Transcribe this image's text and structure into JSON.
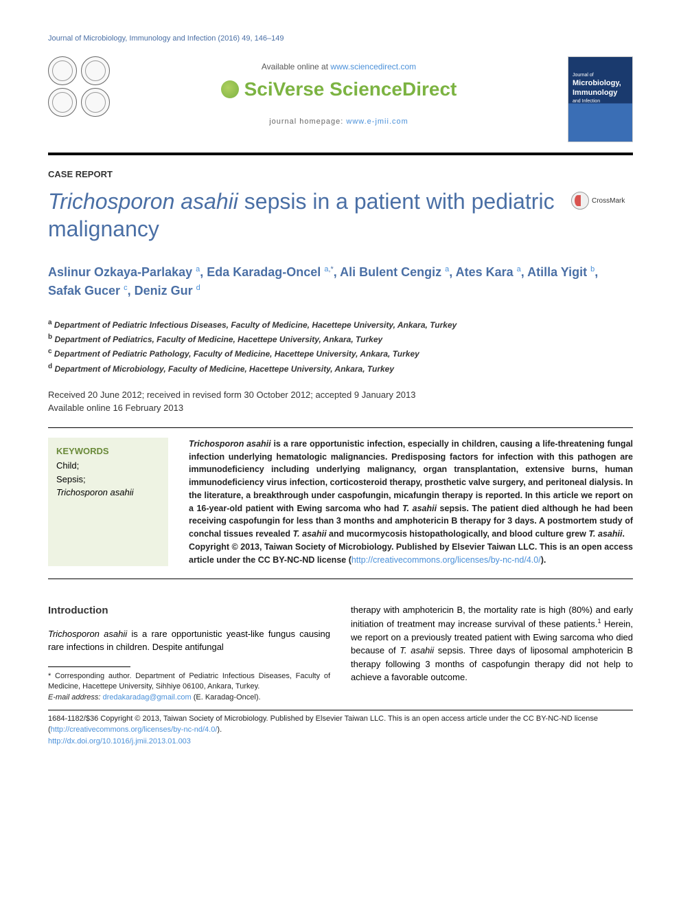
{
  "running_head": "Journal of Microbiology, Immunology and Infection (2016) 49, 146–149",
  "header": {
    "available_prefix": "Available online at ",
    "available_url": "www.sciencedirect.com",
    "brand": "SciVerse ScienceDirect",
    "homepage_prefix": "journal homepage: ",
    "homepage_url": "www.e-jmii.com",
    "cover_journal_line1": "Journal of",
    "cover_journal_line2": "Microbiology,",
    "cover_journal_line3": "Immunology",
    "cover_journal_line4": "and Infection"
  },
  "article_type": "CASE REPORT",
  "title_html": "<em>Trichosporon asahii</em> sepsis in a patient with pediatric malignancy",
  "crossmark_label": "CrossMark",
  "authors_html": "Aslinur Ozkaya-Parlakay <sup><a>a</a></sup>, Eda Karadag-Oncel <sup><a>a</a>,*</sup>, Ali Bulent Cengiz <sup><a>a</a></sup>, Ates Kara <sup><a>a</a></sup>, Atilla Yigit <sup><a>b</a></sup>, Safak Gucer <sup><a>c</a></sup>, Deniz Gur <sup><a>d</a></sup>",
  "affiliations": [
    "a Department of Pediatric Infectious Diseases, Faculty of Medicine, Hacettepe University, Ankara, Turkey",
    "b Department of Pediatrics, Faculty of Medicine, Hacettepe University, Ankara, Turkey",
    "c Department of Pediatric Pathology, Faculty of Medicine, Hacettepe University, Ankara, Turkey",
    "d Department of Microbiology, Faculty of Medicine, Hacettepe University, Ankara, Turkey"
  ],
  "history_line1": "Received 20 June 2012; received in revised form 30 October 2012; accepted 9 January 2013",
  "history_line2": "Available online 16 February 2013",
  "keywords": {
    "heading": "KEYWORDS",
    "items_html": "Child;<br>Sepsis;<br><em>Trichosporon asahii</em>"
  },
  "abstract_html": "<em>Trichosporon asahii</em> is a rare opportunistic infection, especially in children, causing a life-threatening fungal infection underlying hematologic malignancies. Predisposing factors for infection with this pathogen are immunodeficiency including underlying malignancy, organ transplantation, extensive burns, human immunodeficiency virus infection, corticosteroid therapy, prosthetic valve surgery, and peritoneal dialysis. In the literature, a breakthrough under caspofungin, micafungin therapy is reported. In this article we report on a 16-year-old patient with Ewing sarcoma who had <em>T. asahii</em> sepsis. The patient died although he had been receiving caspofungin for less than 3 months and amphotericin B therapy for 3 days. A postmortem study of conchal tissues revealed <em>T. asahii</em> and mucormycosis histopathologically, and blood culture grew <em>T. asahii</em>.<br>Copyright © 2013, Taiwan Society of Microbiology. Published by Elsevier Taiwan LLC. This is an open access article under the CC BY-NC-ND license (<a>http://creativecommons.org/licenses/by-nc-nd/4.0/</a>).",
  "intro": {
    "heading": "Introduction",
    "p1_html": "<em>Trichosporon asahii</em> is a rare opportunistic yeast-like fungus causing rare infections in children. Despite antifungal",
    "p2_html": "therapy with amphotericin B, the mortality rate is high (80%) and early initiation of treatment may increase survival of these patients.<sup>1</sup> Herein, we report on a previously treated patient with Ewing sarcoma who died because of <em>T. asahii</em> sepsis. Three days of liposomal amphotericin B therapy following 3 months of caspofungin therapy did not help to achieve a favorable outcome."
  },
  "footnotes": {
    "corr": "* Corresponding author. Department of Pediatric Infectious Diseases, Faculty of Medicine, Hacettepe University, Sihhiye 06100, Ankara, Turkey.",
    "email_label": "E-mail address: ",
    "email": "dredakaradag@gmail.com",
    "email_suffix": " (E. Karadag-Oncel)."
  },
  "copyright": {
    "line1_prefix": "1684-1182/$36 Copyright © 2013, Taiwan Society of Microbiology. Published by Elsevier Taiwan LLC. This is an open access article under the CC BY-NC-ND license (",
    "license_url": "http://creativecommons.org/licenses/by-nc-nd/4.0/",
    "line1_suffix": ").",
    "doi": "http://dx.doi.org/10.1016/j.jmii.2013.01.003"
  },
  "colors": {
    "link": "#4a90d9",
    "heading_blue": "#4a6fa5",
    "sciverse_green": "#7cb342",
    "keywords_bg": "#eef3e3",
    "keywords_head": "#6a8a3a"
  }
}
